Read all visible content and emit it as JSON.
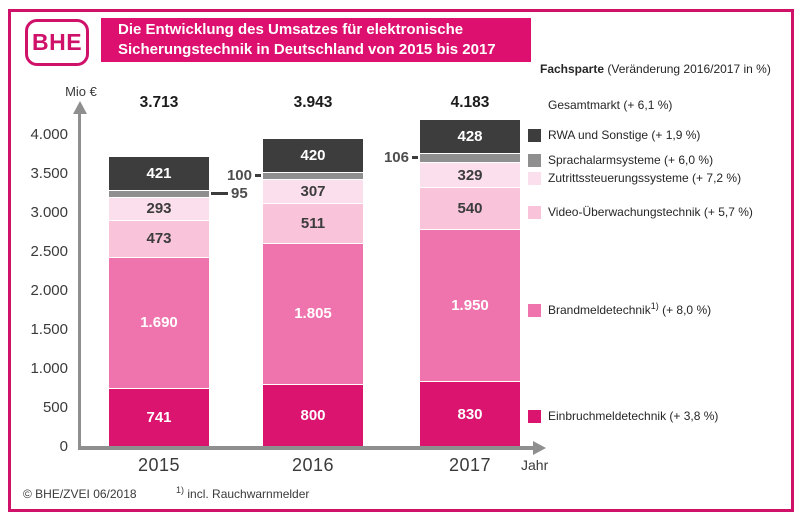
{
  "logo": {
    "text": "BHE"
  },
  "title": {
    "line1": "Die Entwicklung des Umsatzes für elektronische",
    "line2": "Sicherungstechnik in Deutschland von 2015 bis 2017"
  },
  "colors": {
    "brand_magenta": "#cf116a",
    "title_background": "#dd106f",
    "axis_gray": "#8f8f8f",
    "text_dark": "#3a3a3a"
  },
  "axis": {
    "unit_label": "Mio €",
    "x_label": "Jahr"
  },
  "chart_data": {
    "type": "bar",
    "stacked": true,
    "title": "Die Entwicklung des Umsatzes für elektronische Sicherungstechnik in Deutschland von 2015 bis 2017",
    "xlabel": "Jahr",
    "ylabel": "Mio €",
    "ylim": [
      0,
      4000
    ],
    "y_tick_labels": [
      "4.000",
      "3.500",
      "3.000",
      "2.500",
      "2.000",
      "1.500",
      "1.000",
      "500",
      "0"
    ],
    "y_tick_values": [
      4000,
      3500,
      3000,
      2500,
      2000,
      1500,
      1000,
      500,
      0
    ],
    "categories": [
      "2015",
      "2016",
      "2017"
    ],
    "totals": [
      3713,
      3943,
      4183
    ],
    "total_labels": [
      "3.713",
      "3.943",
      "4.183"
    ],
    "series": [
      {
        "key": "einbruchmeldetechnik",
        "name": "Einbruchmeldetechnik",
        "change": "+ 3,8 %",
        "color": "#da146f",
        "text_color": "#ffffff",
        "values": [
          741,
          800,
          830
        ],
        "value_labels": [
          "741",
          "800",
          "830"
        ]
      },
      {
        "key": "brandmeldetechnik",
        "name": "Brandmeldetechnik",
        "change": "+ 8,0 %",
        "color": "#ef74ad",
        "text_color": "#ffffff",
        "values": [
          1690,
          1805,
          1950
        ],
        "value_labels": [
          "1.690",
          "1.805",
          "1.950"
        ]
      },
      {
        "key": "video-ueberwachungstechnik",
        "name": "Video-Überwachungstechnik",
        "change": "+ 5,7 %",
        "color": "#f9c3da",
        "text_color": "#3c3c3c",
        "values": [
          473,
          511,
          540
        ],
        "value_labels": [
          "473",
          "511",
          "540"
        ]
      },
      {
        "key": "zutrittssteuerungssysteme",
        "name": "Zutrittssteuerungssysteme",
        "change": "+ 7,2 %",
        "color": "#fcdfed",
        "text_color": "#3c3c3c",
        "values": [
          293,
          307,
          329
        ],
        "value_labels": [
          "293",
          "307",
          "329"
        ]
      },
      {
        "key": "sprachalarmsysteme",
        "name": "Sprachalarmsysteme",
        "change": "+ 6,0 %",
        "color": "#8f8f8f",
        "text_color": "#4d4d4d",
        "values": [
          95,
          100,
          106
        ],
        "value_labels": [
          "95",
          "100",
          "106"
        ],
        "callout_sides": [
          "right",
          "left",
          "left"
        ]
      },
      {
        "key": "rwa-und-sonstige",
        "name": "RWA und Sonstige",
        "change": "+ 1,9 %",
        "color": "#3d3d3d",
        "text_color": "#ffffff",
        "values": [
          421,
          420,
          428
        ],
        "value_labels": [
          "421",
          "420",
          "428"
        ]
      }
    ],
    "legend_position": "right"
  },
  "legend": {
    "header": {
      "bold": "Fachsparte",
      "rest": " (Veränderung 2016/2017 in %)"
    },
    "items": [
      {
        "label": "Gesamtmarkt (+ 6,1 %)",
        "swatch": null
      },
      {
        "label": "RWA und Sonstige (+ 1,9 %)",
        "swatch": "#3d3d3d"
      },
      {
        "label": "Sprachalarmsysteme (+ 6,0 %)",
        "swatch": "#8f8f8f"
      },
      {
        "label": "Zutrittssteuerungssysteme (+ 7,2 %)",
        "swatch": "#fcdfed"
      },
      {
        "label": "Video-Überwachungstechnik (+ 5,7 %)",
        "swatch": "#f9c3da"
      },
      {
        "label": "Brandmeldetechnik",
        "sup": "1)",
        "suffix": " (+ 8,0 %)",
        "swatch": "#ef74ad"
      },
      {
        "label": "Einbruchmeldetechnik (+ 3,8 %)",
        "swatch": "#da146f"
      }
    ]
  },
  "footer": {
    "copyright": "© BHE/ZVEI 06/2018",
    "footnote_sup": "1)",
    "footnote_text": " incl. Rauchwarnmelder"
  }
}
